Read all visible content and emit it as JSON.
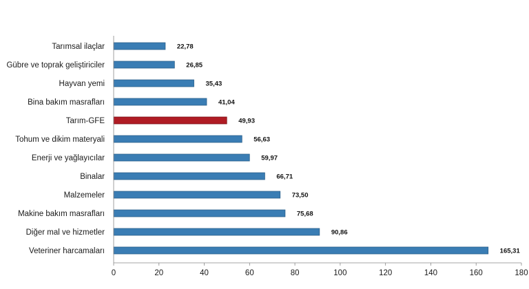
{
  "chart_data": {
    "type": "bar",
    "orientation": "horizontal",
    "title": "",
    "xlabel": "",
    "ylabel": "",
    "categories": [
      "Tarımsal ilaçlar",
      "Gübre ve toprak geliştiriciler",
      "Hayvan yemi",
      "Bina bakım masrafları",
      "Tarım-GFE",
      "Tohum ve dikim materyali",
      "Enerji  ve yağlayıcılar",
      "Binalar",
      "Malzemeler",
      "Makine bakım masrafları",
      "Diğer mal ve hizmetler",
      "Veteriner harcamaları"
    ],
    "values": [
      22.78,
      26.85,
      35.43,
      41.04,
      49.93,
      56.63,
      59.97,
      66.71,
      73.5,
      75.68,
      90.86,
      165.31
    ],
    "value_labels": [
      "22,78",
      "26,85",
      "35,43",
      "41,04",
      "49,93",
      "56,63",
      "59,97",
      "66,71",
      "73,50",
      "75,68",
      "90,86",
      "165,31"
    ],
    "highlight_index": 4,
    "xlim": [
      0,
      180
    ],
    "xticks": [
      0,
      20,
      40,
      60,
      80,
      100,
      120,
      140,
      160,
      180
    ],
    "grid": false,
    "colors": {
      "bar": "#3a7db4",
      "bar_edge": "#2a5f8a",
      "highlight": "#b01c24",
      "highlight_edge": "#7a1015",
      "axis": "#888888"
    }
  }
}
